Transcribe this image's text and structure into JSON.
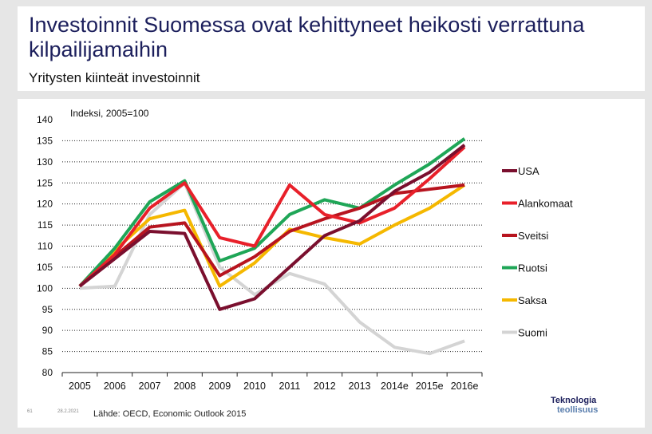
{
  "header": {
    "title": "Investoinnit Suomessa ovat kehittyneet heikosti verrattuna kilpailijamaihin",
    "subtitle": "Yritysten kiinteät investoinnit"
  },
  "footer": {
    "slide_number": "61",
    "date": "28.2.2021",
    "source": "Lähde: OECD, Economic Outlook 2015"
  },
  "logo": {
    "line1": "Teknologia",
    "line2": "teollisuus"
  },
  "chart_data": {
    "type": "line",
    "title": "",
    "unit_label": "Indeksi, 2005=100",
    "xlabel": "",
    "ylabel": "",
    "categories": [
      "2005",
      "2006",
      "2007",
      "2008",
      "2009",
      "2010",
      "2011",
      "2012",
      "2013",
      "2014e",
      "2015e",
      "2016e"
    ],
    "ylim": [
      80,
      140
    ],
    "yticks": [
      80,
      85,
      90,
      95,
      100,
      105,
      110,
      115,
      120,
      125,
      130,
      135,
      140
    ],
    "grid": "horizontal dashed",
    "legend_position": "right",
    "series": [
      {
        "name": "USA",
        "color": "#7a0f2e",
        "values": [
          100.5,
          107,
          113.5,
          113,
          95,
          97.5,
          105,
          112.5,
          116,
          123,
          127.5,
          134
        ]
      },
      {
        "name": "Alankomaat",
        "color": "#e8202a",
        "values": [
          100.5,
          108,
          119,
          125,
          112,
          110,
          124.5,
          117.5,
          115.5,
          119,
          126,
          133.5
        ]
      },
      {
        "name": "Sveitsi",
        "color": "#b7141f",
        "values": [
          100.5,
          107.5,
          114.5,
          115.5,
          103,
          107.5,
          113.5,
          116.5,
          119,
          122.5,
          123.5,
          124.5
        ]
      },
      {
        "name": "Ruotsi",
        "color": "#1fa657",
        "values": [
          100.5,
          109.5,
          120.5,
          125.5,
          106.5,
          109.5,
          117.5,
          121,
          119,
          124.5,
          129.5,
          135.5
        ]
      },
      {
        "name": "Saksa",
        "color": "#f5b800",
        "values": [
          100.5,
          109,
          116.5,
          118.5,
          100.5,
          106,
          114,
          112,
          110.5,
          115,
          119,
          124.5
        ]
      },
      {
        "name": "Suomi",
        "color": "#d4d4d4",
        "values": [
          100,
          100.5,
          117.5,
          125,
          105,
          98.5,
          103.5,
          101,
          92,
          86,
          84.5,
          87.5
        ]
      }
    ]
  }
}
